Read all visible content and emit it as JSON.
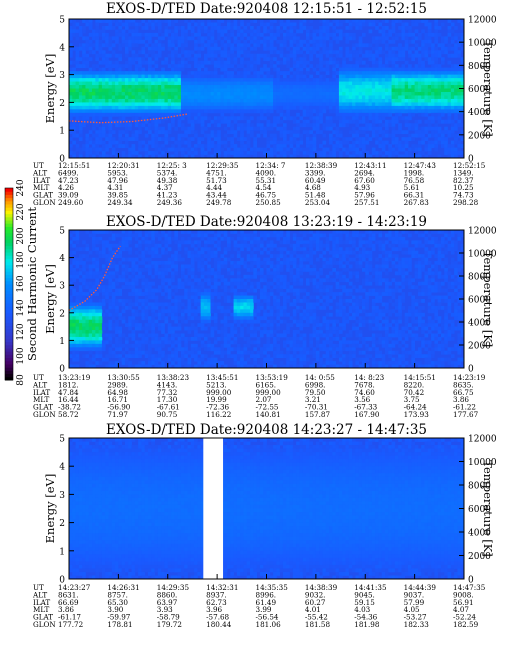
{
  "chart_data": [
    {
      "type": "heatmap",
      "title": "EXOS-D/TED   Date:920408   12:15:51 - 12:52:15",
      "ylabel": "Energy [eV]",
      "y2label": "Temperature [K]",
      "ylim": [
        0,
        5
      ],
      "y2lim": [
        0,
        12000
      ],
      "yticks": [
        "0",
        "1",
        "2",
        "3",
        "4",
        "5"
      ],
      "y2ticks": [
        "0",
        "2000",
        "4000",
        "6000",
        "8000",
        "10000",
        "12000"
      ],
      "ephemeris": {
        "labels": [
          "UT",
          "ALT",
          "ILAT",
          "MLT",
          "GLAT",
          "GLON"
        ],
        "columns": [
          [
            "12:15:51",
            "6499.",
            "47.23",
            "4.26",
            "39.09",
            "249.60"
          ],
          [
            "12:20:31",
            "5953.",
            "47.96",
            "4.31",
            "39.85",
            "249.34"
          ],
          [
            "12:25: 3",
            "5374.",
            "49.38",
            "4.37",
            "41.23",
            "249.36"
          ],
          [
            "12:29:35",
            "4751.",
            "51.73",
            "4.44",
            "43.44",
            "249.78"
          ],
          [
            "12:34: 7",
            "4090.",
            "55.31",
            "4.54",
            "46.75",
            "250.85"
          ],
          [
            "12:38:39",
            "3399.",
            "60.49",
            "4.68",
            "51.48",
            "253.04"
          ],
          [
            "12:43:11",
            "2694.",
            "67.60",
            "4.93",
            "57.96",
            "257.51"
          ],
          [
            "12:47:43",
            "1998.",
            "76.58",
            "5.61",
            "66.31",
            "267.83"
          ],
          [
            "12:52:15",
            "1349.",
            "82.37",
            "10.25",
            "74.73",
            "298.28"
          ]
        ]
      },
      "spectrogram_bands": [
        {
          "t": [
            0.0,
            0.28
          ],
          "center_eV": 2.35,
          "halfwidth_eV": 0.85,
          "peak": 1.0
        },
        {
          "t": [
            0.28,
            0.52
          ],
          "center_eV": 2.3,
          "halfwidth_eV": 0.7,
          "peak": 0.45
        },
        {
          "t": [
            0.52,
            0.68
          ],
          "center_eV": 2.3,
          "halfwidth_eV": 0.6,
          "peak": 0.25
        },
        {
          "t": [
            0.68,
            0.82
          ],
          "center_eV": 2.4,
          "halfwidth_eV": 0.9,
          "peak": 0.75
        },
        {
          "t": [
            0.82,
            1.0
          ],
          "center_eV": 2.4,
          "halfwidth_eV": 0.85,
          "peak": 0.95
        }
      ],
      "temperature_trace_K": [
        [
          0.0,
          3200
        ],
        [
          0.08,
          3050
        ],
        [
          0.16,
          3150
        ],
        [
          0.24,
          3450
        ],
        [
          0.3,
          3800
        ]
      ]
    },
    {
      "type": "heatmap",
      "title": "EXOS-D/TED   Date:920408   13:23:19 - 14:23:19",
      "ylabel": "Energy [eV]",
      "y2label": "Temperature [K]",
      "ylim": [
        0,
        5
      ],
      "y2lim": [
        0,
        12000
      ],
      "yticks": [
        "0",
        "1",
        "2",
        "3",
        "4",
        "5"
      ],
      "y2ticks": [
        "0",
        "2000",
        "4000",
        "6000",
        "8000",
        "10000",
        "12000"
      ],
      "ephemeris": {
        "labels": [
          "UT",
          "ALT",
          "ILAT",
          "MLT",
          "GLAT",
          "GLON"
        ],
        "columns": [
          [
            "13:23:19",
            "1812.",
            "47.84",
            "16.44",
            "-38.72",
            "58.72"
          ],
          [
            "13:30:55",
            "2989.",
            "64.98",
            "16.71",
            "-56.90",
            "71.97"
          ],
          [
            "13:38:23",
            "4143.",
            "77.32",
            "17.30",
            "-67.61",
            "90.75"
          ],
          [
            "13:45:51",
            "5213.",
            "999.00",
            "19.99",
            "-72.36",
            "116.22"
          ],
          [
            "13:53:19",
            "6165.",
            "999.00",
            "2.07",
            "-72.55",
            "140.81"
          ],
          [
            "14: 0:55",
            "6998.",
            "79.50",
            "3.21",
            "-70.31",
            "157.87"
          ],
          [
            "14: 8:23",
            "7678.",
            "74.60",
            "3.56",
            "-67.33",
            "167.90"
          ],
          [
            "14:15:51",
            "8220.",
            "70.42",
            "3.75",
            "-64.24",
            "173.93"
          ],
          [
            "14:23:19",
            "8635.",
            "66.75",
            "3.86",
            "-61.22",
            "177.67"
          ]
        ]
      },
      "colorbar": {
        "label": "Second Harmonic Current",
        "ticks": [
          "80",
          "100",
          "120",
          "140",
          "160",
          "180",
          "200",
          "220",
          "240"
        ],
        "range": [
          80,
          240
        ]
      },
      "spectrogram_bands": [
        {
          "t": [
            0.0,
            0.08
          ],
          "center_eV": 1.5,
          "halfwidth_eV": 0.9,
          "peak": 1.0
        },
        {
          "t": [
            0.33,
            0.36
          ],
          "center_eV": 2.2,
          "halfwidth_eV": 0.6,
          "peak": 0.6
        },
        {
          "t": [
            0.42,
            0.47
          ],
          "center_eV": 2.2,
          "halfwidth_eV": 0.5,
          "peak": 0.7
        }
      ],
      "temperature_trace_K": [
        [
          0.0,
          5000
        ],
        [
          0.04,
          5800
        ],
        [
          0.07,
          6800
        ],
        [
          0.09,
          8000
        ],
        [
          0.11,
          9600
        ],
        [
          0.13,
          10600
        ]
      ]
    },
    {
      "type": "heatmap",
      "title": "EXOS-D/TED   Date:920408   14:23:27 - 14:47:35",
      "ylabel": "Energy [eV]",
      "y2label": "Temperature [K]",
      "ylim": [
        0,
        5
      ],
      "y2lim": [
        0,
        12000
      ],
      "yticks": [
        "0",
        "1",
        "2",
        "3",
        "4",
        "5"
      ],
      "y2ticks": [
        "0",
        "2000",
        "4000",
        "6000",
        "8000",
        "10000",
        "12000"
      ],
      "ephemeris": {
        "labels": [
          "UT",
          "ALT",
          "ILAT",
          "MLT",
          "GLAT",
          "GLON"
        ],
        "columns": [
          [
            "14:23:27",
            "8631.",
            "66.69",
            "3.86",
            "-61.17",
            "177.72"
          ],
          [
            "14:26:31",
            "8757.",
            "65.30",
            "3.90",
            "-59.97",
            "178.81"
          ],
          [
            "14:29:35",
            "8860.",
            "63.97",
            "3.93",
            "-58.79",
            "179.72"
          ],
          [
            "14:32:31",
            "8937.",
            "62.73",
            "3.96",
            "-57.68",
            "180.44"
          ],
          [
            "14:35:35",
            "8996.",
            "61.49",
            "3.99",
            "-56.54",
            "181.06"
          ],
          [
            "14:38:39",
            "9032.",
            "60.27",
            "4.01",
            "-55.42",
            "181.58"
          ],
          [
            "14:41:35",
            "9045.",
            "59.15",
            "4.03",
            "-54.36",
            "181.98"
          ],
          [
            "14:44:39",
            "9037.",
            "57.99",
            "4.05",
            "-53.27",
            "182.33"
          ],
          [
            "14:47:35",
            "9008.",
            "56.91",
            "4.07",
            "-52.24",
            "182.59"
          ]
        ]
      },
      "data_gap": {
        "t": [
          0.34,
          0.39
        ]
      },
      "spectrogram_bands": [
        {
          "t": [
            0.0,
            1.0
          ],
          "center_eV": 2.5,
          "halfwidth_eV": 2.5,
          "peak": 0.25
        }
      ],
      "temperature_trace_K": []
    }
  ]
}
